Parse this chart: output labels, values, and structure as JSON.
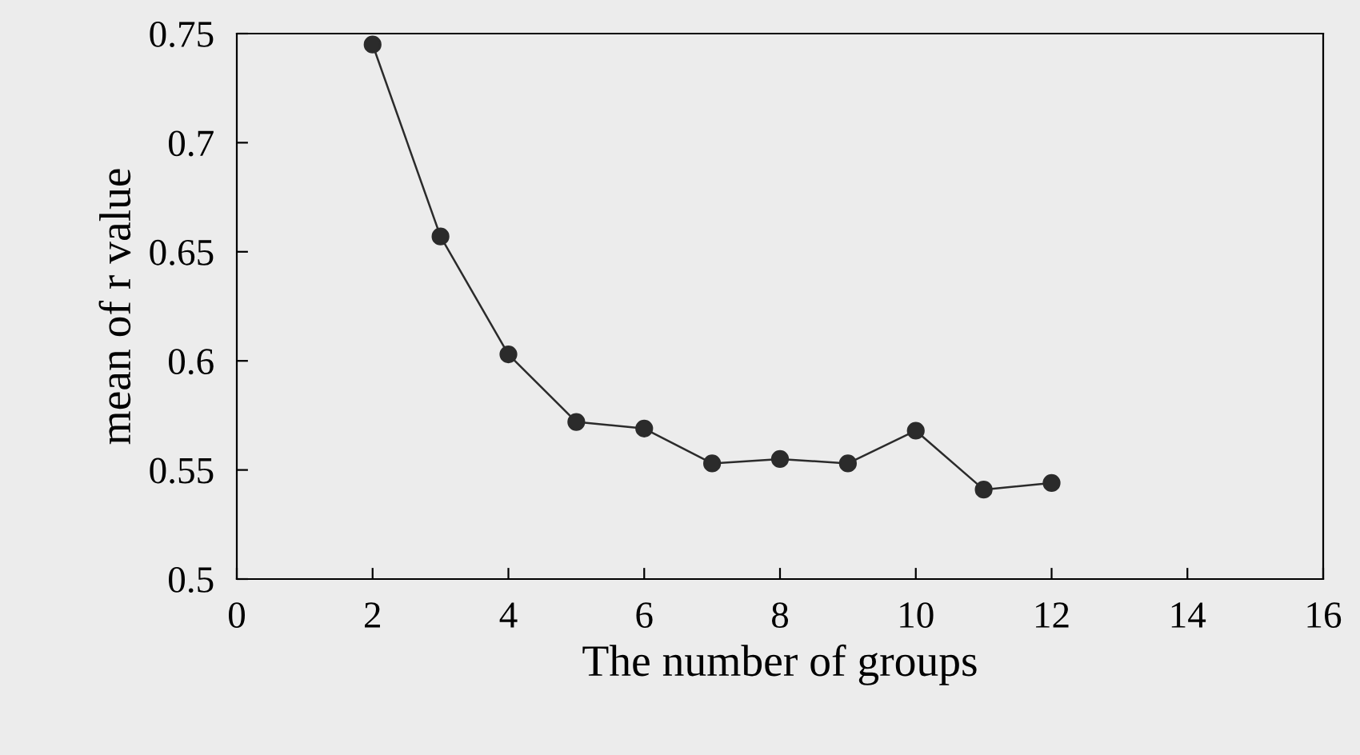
{
  "chart_data": {
    "type": "line",
    "xlabel": "The number of groups",
    "ylabel": "mean of r value",
    "x": [
      2,
      3,
      4,
      5,
      6,
      7,
      8,
      9,
      10,
      11,
      12
    ],
    "series": [
      {
        "color": "#2b2b2b",
        "values": [
          0.745,
          0.657,
          0.603,
          0.572,
          0.569,
          0.553,
          0.555,
          0.553,
          0.568,
          0.541,
          0.544
        ]
      }
    ],
    "xlim": [
      0,
      16
    ],
    "xticks": [
      0,
      2,
      4,
      6,
      8,
      10,
      12,
      14,
      16
    ],
    "ylim": [
      0.5,
      0.75
    ],
    "yticks": [
      0.5,
      0.55,
      0.6,
      0.65,
      0.7,
      0.75
    ],
    "grid": false,
    "legend": false,
    "marker": "circle",
    "line_style": "solid"
  }
}
